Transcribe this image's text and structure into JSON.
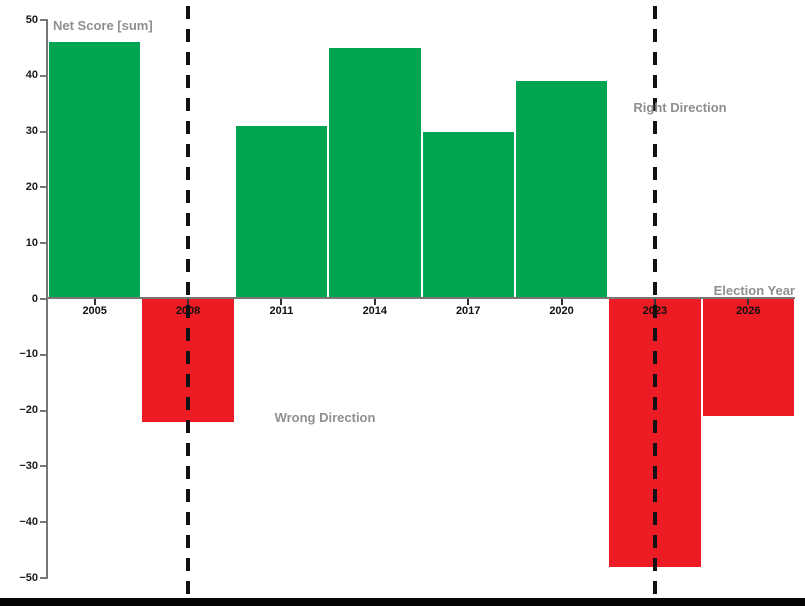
{
  "chart_data": {
    "type": "bar",
    "title": "Net Score [sum]",
    "xlabel": "Election Year",
    "ylabel": "Net Score [sum]",
    "categories": [
      "2005",
      "2008",
      "2011",
      "2014",
      "2017",
      "2020",
      "2023",
      "2026"
    ],
    "values": [
      46,
      -22,
      31,
      45,
      30,
      39,
      -48,
      -21
    ],
    "ylim": [
      -50,
      50
    ],
    "y_ticks": [
      50,
      40,
      30,
      20,
      10,
      0,
      -10,
      -20,
      -30,
      -40,
      -50
    ],
    "grid": false,
    "legend": "none",
    "bar_colors": {
      "positive": "#00A551",
      "negative": "#ED1C24"
    },
    "reference_lines": {
      "style": "dashed-vertical",
      "color": "#121216",
      "at_categories": [
        "2008",
        "2023"
      ]
    },
    "annotations": [
      {
        "text": "Right Direction",
        "color": "#8f8f8f",
        "near_category": "2023",
        "near_value": 33
      },
      {
        "text": "Wrong Direction",
        "color": "#8f8f8f",
        "near_category": "2011",
        "near_value": -21
      }
    ]
  },
  "decor": {
    "bottom_bar_color": "#050507",
    "axis_color": "#767676"
  }
}
